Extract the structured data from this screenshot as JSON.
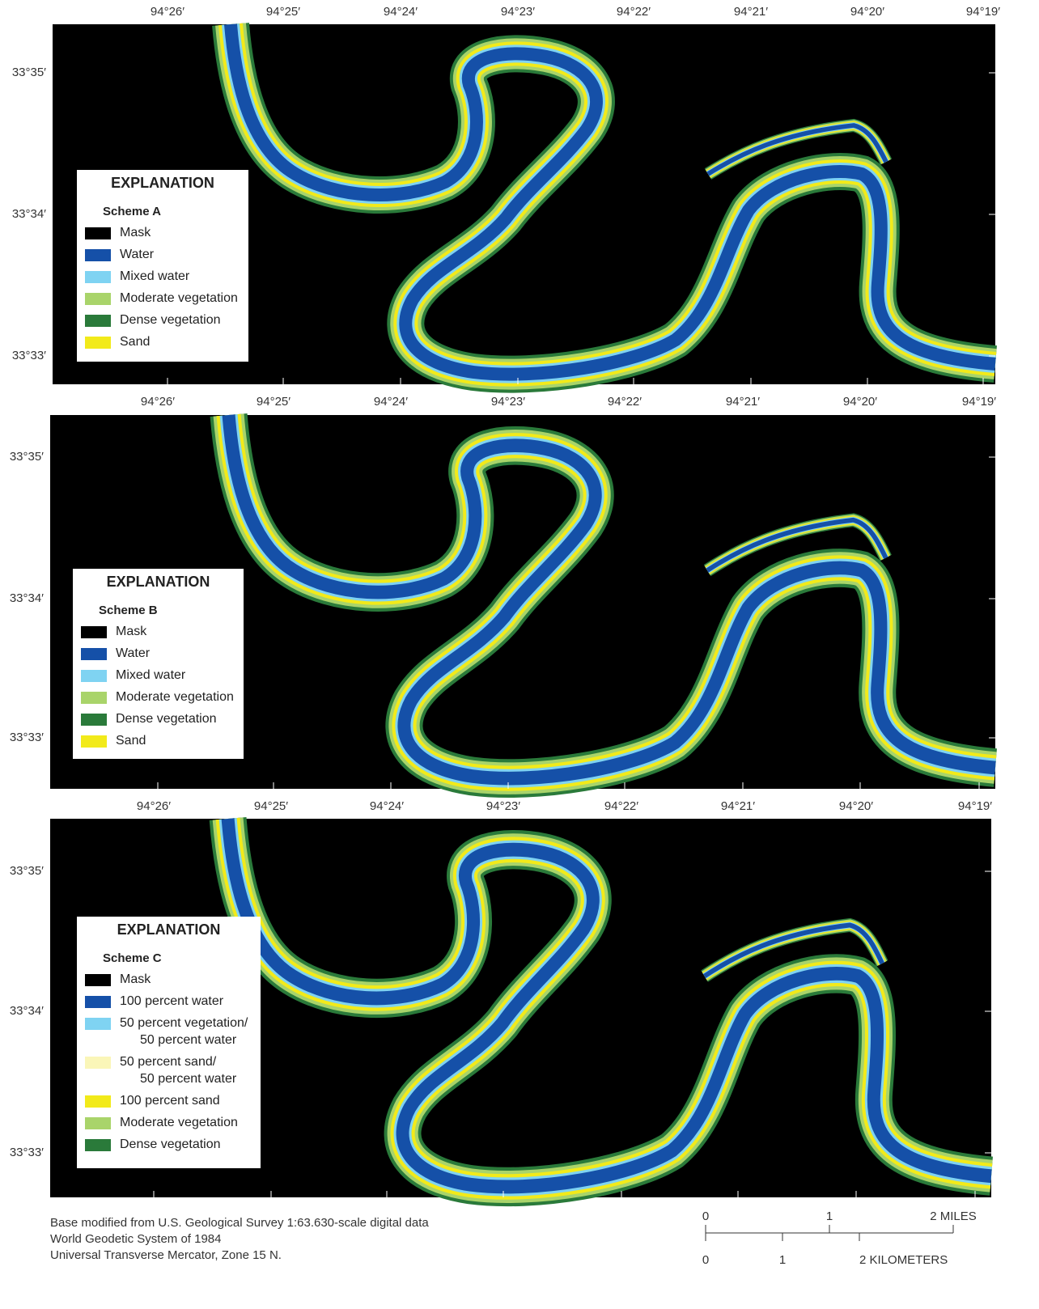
{
  "panels": [
    {
      "x_labels": [
        "94°26′",
        "94°25′",
        "94°24′",
        "94°23′",
        "94°22′",
        "94°21′",
        "94°20′",
        "94°19′"
      ],
      "y_labels": [
        "33°35′",
        "33°34′",
        "33°33′"
      ],
      "legend": {
        "title": "EXPLANATION",
        "scheme": "Scheme A",
        "items": [
          {
            "label": [
              "Mask"
            ],
            "color": "#000000"
          },
          {
            "label": [
              "Water"
            ],
            "color": "#1550a8"
          },
          {
            "label": [
              "Mixed water"
            ],
            "color": "#7fd3f2"
          },
          {
            "label": [
              "Moderate vegetation"
            ],
            "color": "#a9d46a"
          },
          {
            "label": [
              "Dense vegetation"
            ],
            "color": "#2a7a3a"
          },
          {
            "label": [
              "Sand"
            ],
            "color": "#f2ea1a"
          }
        ]
      }
    },
    {
      "x_labels": [
        "94°26′",
        "94°25′",
        "94°24′",
        "94°23′",
        "94°22′",
        "94°21′",
        "94°20′",
        "94°19′"
      ],
      "y_labels": [
        "33°35′",
        "33°34′",
        "33°33′"
      ],
      "legend": {
        "title": "EXPLANATION",
        "scheme": "Scheme B",
        "items": [
          {
            "label": [
              "Mask"
            ],
            "color": "#000000"
          },
          {
            "label": [
              "Water"
            ],
            "color": "#1550a8"
          },
          {
            "label": [
              "Mixed water"
            ],
            "color": "#7fd3f2"
          },
          {
            "label": [
              "Moderate vegetation"
            ],
            "color": "#a9d46a"
          },
          {
            "label": [
              "Dense vegetation"
            ],
            "color": "#2a7a3a"
          },
          {
            "label": [
              "Sand"
            ],
            "color": "#f2ea1a"
          }
        ]
      }
    },
    {
      "x_labels": [
        "94°26′",
        "94°25′",
        "94°24′",
        "94°23′",
        "94°22′",
        "94°21′",
        "94°20′",
        "94°19′"
      ],
      "y_labels": [
        "33°35′",
        "33°34′",
        "33°33′"
      ],
      "legend": {
        "title": "EXPLANATION",
        "scheme": "Scheme C",
        "items": [
          {
            "label": [
              "Mask"
            ],
            "color": "#000000"
          },
          {
            "label": [
              "100 percent water"
            ],
            "color": "#1550a8"
          },
          {
            "label": [
              "50 percent vegetation/",
              "50 percent water"
            ],
            "color": "#7fd3f2"
          },
          {
            "label": [
              "50 percent sand/",
              "50 percent water"
            ],
            "color": "#faf6b8"
          },
          {
            "label": [
              "100 percent sand"
            ],
            "color": "#f2ea1a"
          },
          {
            "label": [
              "Moderate vegetation"
            ],
            "color": "#a9d46a"
          },
          {
            "label": [
              "Dense vegetation"
            ],
            "color": "#2a7a3a"
          }
        ]
      }
    }
  ],
  "credits": [
    "Base modified from U.S. Geological Survey 1:63.630-scale digital data",
    "World Geodetic System of 1984",
    "Universal Transverse Mercator, Zone 15 N."
  ],
  "scale": {
    "miles": [
      "0",
      "1",
      "2 MILES"
    ],
    "km": [
      "0",
      "1",
      "2 KILOMETERS"
    ]
  }
}
